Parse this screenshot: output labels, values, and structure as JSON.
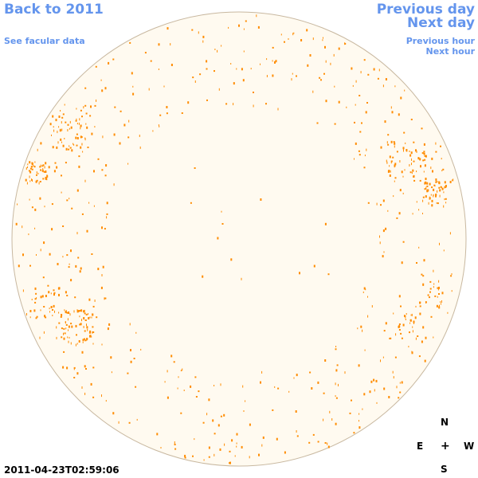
{
  "nav": {
    "back": "Back to 2011",
    "facular": "See facular data",
    "prev_day": "Previous day",
    "next_day": "Next day",
    "prev_hour": "Previous hour",
    "next_hour": "Next hour"
  },
  "compass": {
    "north": "N",
    "east": "E",
    "center": "+",
    "west": "W",
    "south": "S"
  },
  "timestamp": "2011-04-23T02:59:06",
  "colors": {
    "link": "#6495ed",
    "disk_fill": "#fffaf0",
    "disk_edge": "#c8b8a0",
    "magnetic_feature": "#ff8c00"
  }
}
